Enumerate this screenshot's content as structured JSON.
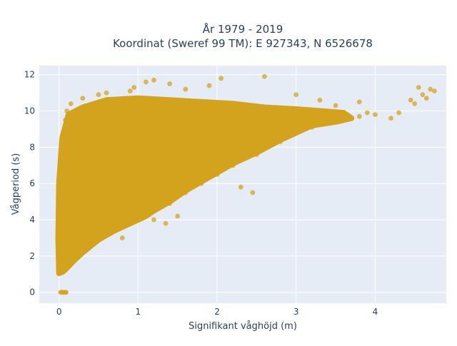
{
  "chart_data": {
    "type": "scatter",
    "title_lines": [
      "År 1979 - 2019",
      "Koordinat (Sweref 99 TM): E 927343, N 6526678"
    ],
    "xlabel": "Signifikant våghöjd (m)",
    "ylabel": "Vågperiod (s)",
    "xlim": [
      -0.25,
      4.9
    ],
    "ylim": [
      -0.6,
      12.5
    ],
    "xticks": [
      0,
      1,
      2,
      3,
      4
    ],
    "yticks": [
      0,
      2,
      4,
      6,
      8,
      10,
      12
    ],
    "grid": true,
    "legend": "none",
    "marker_color": "#D4A31E",
    "marker_opacity": 0.75,
    "plot_background": "#E5ECF6",
    "series": [
      {
        "points": [
          [
            0.02,
            0
          ],
          [
            0.03,
            0
          ],
          [
            0.05,
            0
          ],
          [
            0.06,
            0
          ],
          [
            0.08,
            0
          ],
          [
            0.09,
            0
          ],
          [
            0.05,
            1.1
          ],
          [
            0.08,
            1.2
          ],
          [
            0.1,
            1.4
          ],
          [
            0.15,
            1.6
          ],
          [
            0.2,
            1.9
          ],
          [
            0.3,
            2.3
          ],
          [
            0.4,
            2.7
          ],
          [
            0.5,
            3.0
          ],
          [
            0.7,
            3.5
          ],
          [
            0.9,
            3.9
          ],
          [
            1.1,
            4.3
          ],
          [
            1.2,
            4.5
          ],
          [
            1.4,
            4.9
          ],
          [
            1.6,
            5.5
          ],
          [
            1.8,
            6.0
          ],
          [
            2.0,
            6.5
          ],
          [
            2.2,
            7.0
          ],
          [
            2.5,
            7.6
          ],
          [
            2.8,
            8.3
          ],
          [
            3.0,
            8.8
          ],
          [
            3.2,
            9.1
          ],
          [
            3.4,
            9.4
          ],
          [
            3.6,
            9.5
          ],
          [
            3.8,
            9.7
          ],
          [
            4.0,
            9.8
          ],
          [
            4.3,
            9.9
          ],
          [
            0.08,
            9.5
          ],
          [
            0.1,
            10.0
          ],
          [
            0.15,
            10.4
          ],
          [
            0.3,
            10.7
          ],
          [
            0.5,
            10.9
          ],
          [
            0.6,
            11.0
          ],
          [
            0.9,
            11.1
          ],
          [
            0.95,
            11.3
          ],
          [
            1.1,
            11.6
          ],
          [
            1.2,
            11.7
          ],
          [
            1.4,
            11.5
          ],
          [
            1.6,
            11.2
          ],
          [
            1.9,
            11.4
          ],
          [
            2.05,
            11.8
          ],
          [
            2.6,
            11.9
          ],
          [
            3.0,
            10.9
          ],
          [
            3.3,
            10.6
          ],
          [
            3.8,
            10.5
          ],
          [
            4.45,
            10.6
          ],
          [
            4.55,
            11.3
          ],
          [
            4.6,
            10.9
          ],
          [
            4.65,
            10.7
          ],
          [
            4.7,
            11.2
          ],
          [
            4.75,
            11.1
          ],
          [
            4.5,
            10.4
          ],
          [
            3.5,
            10.3
          ],
          [
            3.9,
            9.9
          ],
          [
            4.2,
            9.6
          ],
          [
            2.45,
            5.5
          ],
          [
            2.3,
            5.8
          ],
          [
            1.35,
            3.8
          ],
          [
            1.2,
            4.0
          ],
          [
            0.8,
            3.0
          ],
          [
            1.5,
            4.2
          ]
        ]
      }
    ]
  }
}
